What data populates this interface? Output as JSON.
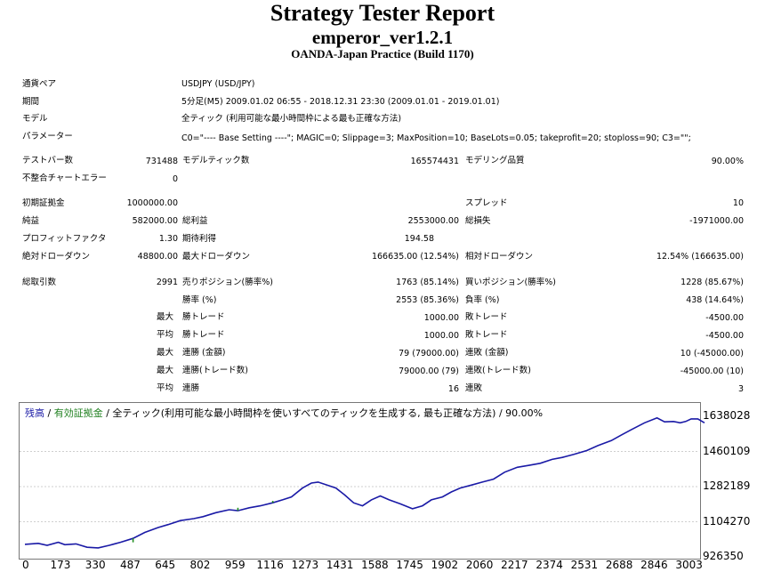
{
  "header": {
    "title": "Strategy Tester Report",
    "ea_name": "emperor_ver1.2.1",
    "server": "OANDA-Japan Practice (Build 1170)"
  },
  "info": {
    "symbol_label": "通貨ペア",
    "symbol_value": "USDJPY (USD/JPY)",
    "period_label": "期間",
    "period_value": "5分足(M5) 2009.01.02 06:55 - 2018.12.31 23:30 (2009.01.01 - 2019.01.01)",
    "model_label": "モデル",
    "model_value": "全ティック (利用可能な最小時間枠による最も正確な方法)",
    "params_label": "パラメーター",
    "params_value": "C0=\"---- Base Setting ----\"; MAGIC=0; Slippage=3; MaxPosition=10; BaseLots=0.05; takeprofit=20; stoploss=90; C3=\"\";"
  },
  "stats": {
    "bars_label": "テストバー数",
    "bars_value": "731488",
    "ticks_label": "モデルティック数",
    "ticks_value": "165574431",
    "quality_label": "モデリング品質",
    "quality_value": "90.00%",
    "mismatch_label": "不整合チャートエラー",
    "mismatch_value": "0",
    "deposit_label": "初期証拠金",
    "deposit_value": "1000000.00",
    "spread_label": "スプレッド",
    "spread_value": "10",
    "net_label": "純益",
    "net_value": "582000.00",
    "gross_profit_label": "総利益",
    "gross_profit_value": "2553000.00",
    "gross_loss_label": "総損失",
    "gross_loss_value": "-1971000.00",
    "pf_label": "プロフィットファクタ",
    "pf_value": "1.30",
    "payoff_label": "期待利得",
    "payoff_value": "194.58",
    "abs_dd_label": "絶対ドローダウン",
    "abs_dd_value": "48800.00",
    "max_dd_label": "最大ドローダウン",
    "max_dd_value": "166635.00 (12.54%)",
    "rel_dd_label": "相対ドローダウン",
    "rel_dd_value": "12.54% (166635.00)",
    "total_label": "総取引数",
    "total_value": "2991",
    "short_label": "売りポジション(勝率%)",
    "short_value": "1763 (85.14%)",
    "long_label": "買いポジション(勝率%)",
    "long_value": "1228 (85.67%)",
    "win_label": "勝率 (%)",
    "win_value": "2553 (85.36%)",
    "loss_label": "負率 (%)",
    "loss_value": "438 (14.64%)",
    "max1": "最大",
    "largest_win_label": "勝トレード",
    "largest_win_value": "1000.00",
    "largest_loss_label": "敗トレード",
    "largest_loss_value": "-4500.00",
    "avg1": "平均",
    "avg_win_label": "勝トレード",
    "avg_win_value": "1000.00",
    "avg_loss_label": "敗トレード",
    "avg_loss_value": "-4500.00",
    "max2": "最大",
    "cons_win_money_label": "連勝 (金額)",
    "cons_win_money_value": "79 (79000.00)",
    "cons_loss_money_label": "連敗 (金額)",
    "cons_loss_money_value": "10 (-45000.00)",
    "max3": "最大",
    "cons_win_count_label": "連勝(トレード数)",
    "cons_win_count_value": "79000.00 (79)",
    "cons_loss_count_label": "連敗(トレード数)",
    "cons_loss_count_value": "-45000.00 (10)",
    "avg2": "平均",
    "avg_cons_win_label": "連勝",
    "avg_cons_win_value": "16",
    "avg_cons_loss_label": "連敗",
    "avg_cons_loss_value": "3"
  },
  "chart_legend": {
    "balance": "残高",
    "sep1": " / ",
    "equity": "有効証拠金",
    "rest": " / 全ティック(利用可能な最小時間枠を使いすべてのティックを生成する, 最も正確な方法) / 90.00%"
  },
  "chart_data": {
    "type": "line",
    "y_ticks": [
      "1638028",
      "1460109",
      "1282189",
      "1104270",
      "926350"
    ],
    "x_ticks": [
      "0",
      "173",
      "330",
      "487",
      "645",
      "802",
      "959",
      "1116",
      "1273",
      "1431",
      "1588",
      "1745",
      "1902",
      "2060",
      "2217",
      "2374",
      "2531",
      "2688",
      "2846",
      "3003"
    ],
    "ylim": [
      926350,
      1638028
    ],
    "xlim": [
      0,
      3003
    ],
    "colors": {
      "balance": "#1a1aa6",
      "equity": "#209020"
    },
    "series": [
      {
        "name": "残高",
        "points": [
          [
            0,
            990000
          ],
          [
            60,
            995000
          ],
          [
            100,
            985000
          ],
          [
            150,
            1000000
          ],
          [
            180,
            988000
          ],
          [
            230,
            992000
          ],
          [
            280,
            975000
          ],
          [
            330,
            972000
          ],
          [
            380,
            985000
          ],
          [
            430,
            1000000
          ],
          [
            487,
            1020000
          ],
          [
            540,
            1050000
          ],
          [
            600,
            1075000
          ],
          [
            645,
            1090000
          ],
          [
            700,
            1110000
          ],
          [
            760,
            1120000
          ],
          [
            802,
            1130000
          ],
          [
            860,
            1150000
          ],
          [
            920,
            1165000
          ],
          [
            959,
            1160000
          ],
          [
            1010,
            1175000
          ],
          [
            1060,
            1185000
          ],
          [
            1116,
            1200000
          ],
          [
            1160,
            1215000
          ],
          [
            1200,
            1230000
          ],
          [
            1250,
            1275000
          ],
          [
            1290,
            1300000
          ],
          [
            1320,
            1305000
          ],
          [
            1360,
            1290000
          ],
          [
            1400,
            1275000
          ],
          [
            1440,
            1240000
          ],
          [
            1480,
            1200000
          ],
          [
            1520,
            1185000
          ],
          [
            1560,
            1215000
          ],
          [
            1600,
            1235000
          ],
          [
            1640,
            1215000
          ],
          [
            1690,
            1195000
          ],
          [
            1745,
            1170000
          ],
          [
            1790,
            1185000
          ],
          [
            1830,
            1215000
          ],
          [
            1880,
            1230000
          ],
          [
            1920,
            1255000
          ],
          [
            1960,
            1275000
          ],
          [
            2010,
            1290000
          ],
          [
            2060,
            1305000
          ],
          [
            2110,
            1320000
          ],
          [
            2160,
            1355000
          ],
          [
            2217,
            1380000
          ],
          [
            2270,
            1390000
          ],
          [
            2320,
            1400000
          ],
          [
            2374,
            1420000
          ],
          [
            2420,
            1430000
          ],
          [
            2470,
            1445000
          ],
          [
            2531,
            1465000
          ],
          [
            2580,
            1490000
          ],
          [
            2640,
            1515000
          ],
          [
            2688,
            1545000
          ],
          [
            2730,
            1570000
          ],
          [
            2790,
            1605000
          ],
          [
            2846,
            1630000
          ],
          [
            2880,
            1610000
          ],
          [
            2920,
            1612000
          ],
          [
            2950,
            1605000
          ],
          [
            2975,
            1612000
          ],
          [
            3000,
            1625000
          ],
          [
            3030,
            1625000
          ],
          [
            3060,
            1605000
          ]
        ]
      },
      {
        "name": "有効証拠金",
        "points": [
          [
            487,
            1000000
          ],
          [
            487,
            1020000
          ],
          [
            959,
            1160000
          ],
          [
            959,
            1175000
          ],
          [
            1116,
            1200000
          ],
          [
            1116,
            1210000
          ]
        ]
      }
    ]
  }
}
